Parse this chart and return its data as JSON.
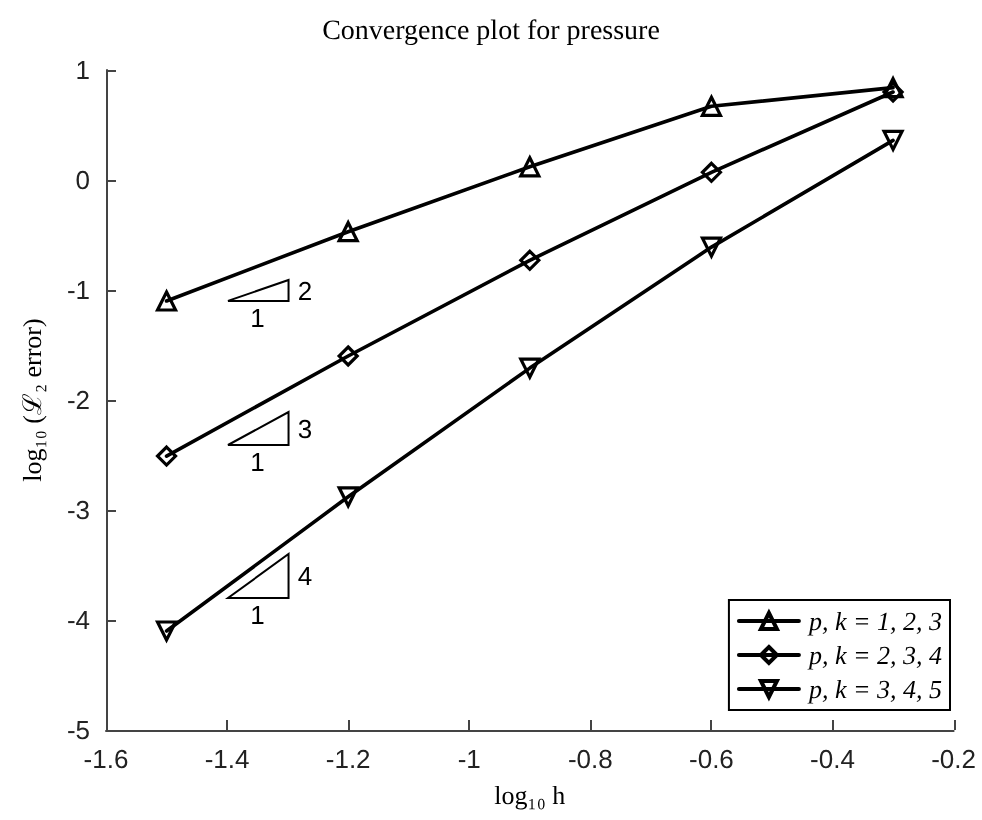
{
  "chart_data": {
    "type": "line",
    "title": "Convergence plot for pressure",
    "xlabel": "log₁₀ h",
    "ylabel": "log₁₀ (ℒ₂ error)",
    "x": [
      -1.5,
      -1.2,
      -0.9,
      -0.6,
      -0.3
    ],
    "series": [
      {
        "name": "p, k = 1, 2, 3",
        "color": "#000000",
        "marker": "triangle",
        "values": [
          -1.1,
          -0.47,
          0.12,
          0.67,
          0.84
        ]
      },
      {
        "name": "p, k = 2, 3, 4",
        "color": "#000000",
        "marker": "diamond",
        "values": [
          -2.51,
          -1.6,
          -0.73,
          0.07,
          0.8
        ]
      },
      {
        "name": "p, k = 3, 4, 5",
        "color": "#000000",
        "marker": "triangle-down",
        "values": [
          -4.1,
          -2.88,
          -1.71,
          -0.61,
          0.36
        ]
      }
    ],
    "xlim": [
      -1.6,
      -0.2
    ],
    "xticks": [
      -1.6,
      -1.4,
      -1.2,
      -1,
      -0.8,
      -0.6,
      -0.4,
      -0.2
    ],
    "ylim": [
      -5,
      1
    ],
    "yticks": [
      -5,
      -4,
      -3,
      -2,
      -1,
      0,
      1
    ],
    "grid": false,
    "legend": "bottom right",
    "line_style": "solid",
    "annotations": [
      "2",
      "1",
      "3",
      "1",
      "4",
      "1"
    ]
  }
}
